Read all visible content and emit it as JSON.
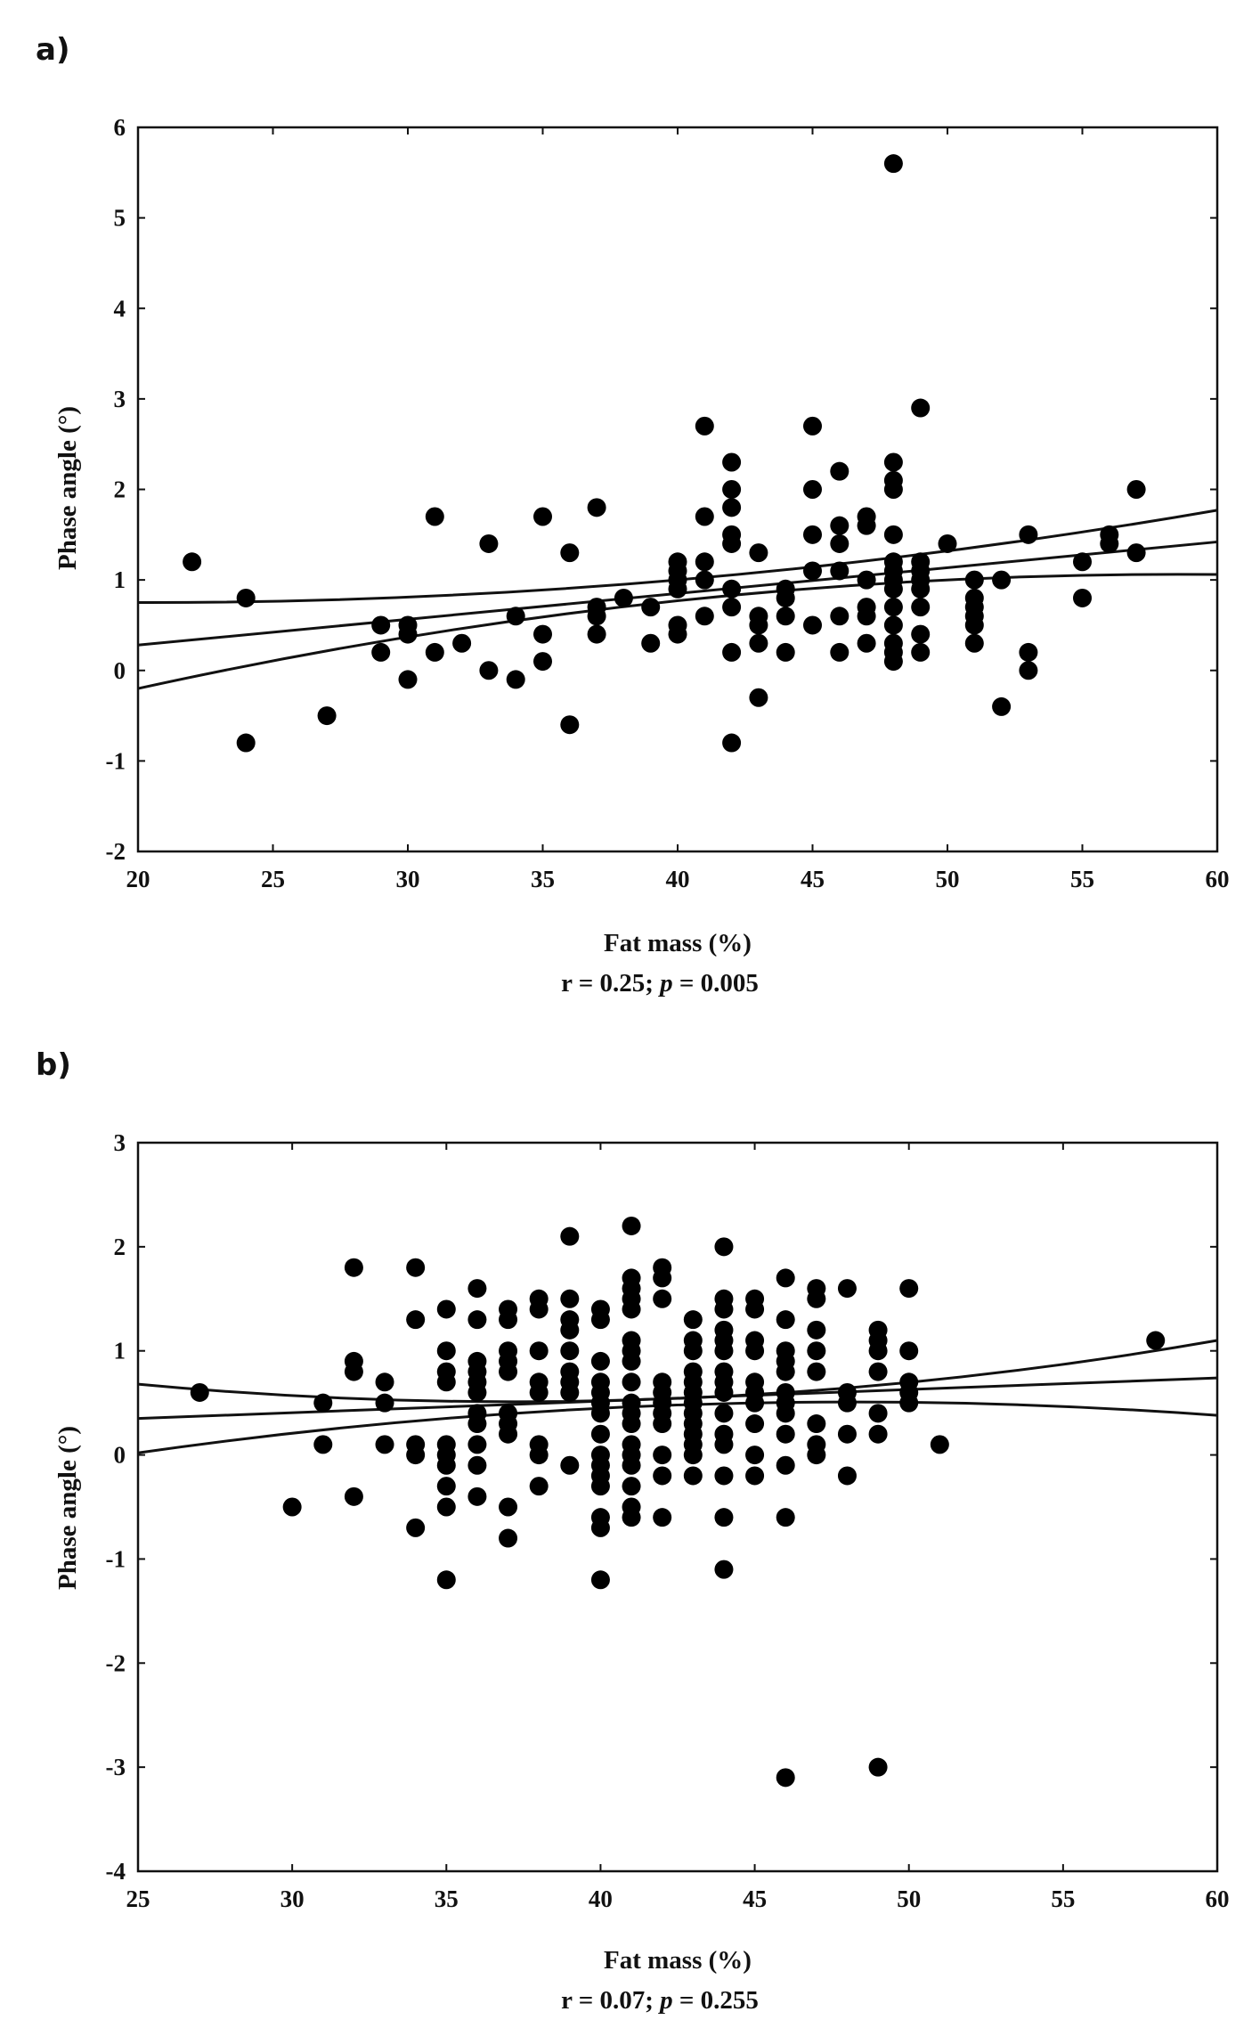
{
  "chart_data": [
    {
      "panel_label": "a)",
      "type": "scatter",
      "xlabel": "Fat mass (%)",
      "ylabel": "Phase angle (°)",
      "stat_text": "r = 0.25; p = 0.005",
      "stat_r": "r = 0.25; ",
      "stat_p_symbol": "p",
      "stat_p_value": " = 0.005",
      "xlim": [
        20,
        60
      ],
      "ylim": [
        -2,
        6
      ],
      "xticks": [
        20,
        25,
        30,
        35,
        40,
        45,
        50,
        55,
        60
      ],
      "yticks": [
        -2,
        -1,
        0,
        1,
        2,
        3,
        4,
        5,
        6
      ],
      "points": [
        [
          22,
          1.2
        ],
        [
          24,
          0.8
        ],
        [
          24,
          -0.8
        ],
        [
          27,
          -0.5
        ],
        [
          29,
          0.5
        ],
        [
          29,
          0.2
        ],
        [
          30,
          0.5
        ],
        [
          30,
          0.4
        ],
        [
          30,
          -0.1
        ],
        [
          31,
          1.7
        ],
        [
          31,
          0.2
        ],
        [
          32,
          0.3
        ],
        [
          33,
          1.4
        ],
        [
          33,
          0.0
        ],
        [
          34,
          0.6
        ],
        [
          34,
          -0.1
        ],
        [
          35,
          1.7
        ],
        [
          35,
          0.4
        ],
        [
          35,
          0.1
        ],
        [
          36,
          1.3
        ],
        [
          36,
          -0.6
        ],
        [
          37,
          1.8
        ],
        [
          37,
          0.7
        ],
        [
          37,
          0.6
        ],
        [
          37,
          0.4
        ],
        [
          38,
          0.8
        ],
        [
          39,
          0.7
        ],
        [
          39,
          0.3
        ],
        [
          40,
          1.2
        ],
        [
          40,
          1.1
        ],
        [
          40,
          1.0
        ],
        [
          40,
          0.9
        ],
        [
          40,
          0.5
        ],
        [
          40,
          0.4
        ],
        [
          41,
          2.7
        ],
        [
          41,
          1.7
        ],
        [
          41,
          1.2
        ],
        [
          41,
          1.0
        ],
        [
          41,
          0.6
        ],
        [
          42,
          2.3
        ],
        [
          42,
          2.0
        ],
        [
          42,
          1.8
        ],
        [
          42,
          1.5
        ],
        [
          42,
          1.4
        ],
        [
          42,
          0.9
        ],
        [
          42,
          0.7
        ],
        [
          42,
          0.2
        ],
        [
          42,
          -0.8
        ],
        [
          43,
          1.3
        ],
        [
          43,
          0.6
        ],
        [
          43,
          0.5
        ],
        [
          43,
          0.3
        ],
        [
          43,
          -0.3
        ],
        [
          44,
          0.9
        ],
        [
          44,
          0.8
        ],
        [
          44,
          0.6
        ],
        [
          44,
          0.2
        ],
        [
          45,
          2.7
        ],
        [
          45,
          2.0
        ],
        [
          45,
          1.5
        ],
        [
          45,
          1.1
        ],
        [
          45,
          0.5
        ],
        [
          46,
          2.2
        ],
        [
          46,
          1.6
        ],
        [
          46,
          1.4
        ],
        [
          46,
          1.1
        ],
        [
          46,
          0.6
        ],
        [
          46,
          0.2
        ],
        [
          47,
          1.7
        ],
        [
          47,
          1.6
        ],
        [
          47,
          1.0
        ],
        [
          47,
          0.7
        ],
        [
          47,
          0.6
        ],
        [
          47,
          0.3
        ],
        [
          48,
          5.6
        ],
        [
          48,
          2.3
        ],
        [
          48,
          2.1
        ],
        [
          48,
          2.0
        ],
        [
          48,
          1.5
        ],
        [
          48,
          1.2
        ],
        [
          48,
          1.1
        ],
        [
          48,
          1.0
        ],
        [
          48,
          0.9
        ],
        [
          48,
          0.7
        ],
        [
          48,
          0.5
        ],
        [
          48,
          0.3
        ],
        [
          48,
          0.2
        ],
        [
          48,
          0.1
        ],
        [
          49,
          2.9
        ],
        [
          49,
          1.2
        ],
        [
          49,
          1.1
        ],
        [
          49,
          1.0
        ],
        [
          49,
          0.9
        ],
        [
          49,
          0.7
        ],
        [
          49,
          0.4
        ],
        [
          49,
          0.2
        ],
        [
          50,
          1.4
        ],
        [
          51,
          1.0
        ],
        [
          51,
          0.8
        ],
        [
          51,
          0.7
        ],
        [
          51,
          0.6
        ],
        [
          51,
          0.5
        ],
        [
          51,
          0.3
        ],
        [
          52,
          1.0
        ],
        [
          52,
          -0.4
        ],
        [
          53,
          1.5
        ],
        [
          53,
          0.2
        ],
        [
          53,
          0.0
        ],
        [
          55,
          1.2
        ],
        [
          55,
          0.8
        ],
        [
          56,
          1.5
        ],
        [
          56,
          1.4
        ],
        [
          57,
          2.0
        ],
        [
          57,
          1.3
        ]
      ],
      "regression": {
        "x": [
          20,
          60
        ],
        "y": [
          0.28,
          1.42
        ]
      },
      "ci_upper": {
        "x": [
          20,
          40,
          60
        ],
        "y": [
          0.75,
          1.0,
          1.77
        ]
      },
      "ci_lower": {
        "x": [
          20,
          40,
          60
        ],
        "y": [
          -0.2,
          0.77,
          1.06
        ]
      }
    },
    {
      "panel_label": "b)",
      "type": "scatter",
      "xlabel": "Fat mass (%)",
      "ylabel": "Phase angle (°)",
      "stat_text": "r = 0.07; p = 0.255",
      "stat_r": "r = 0.07; ",
      "stat_p_symbol": "p",
      "stat_p_value": " = 0.255",
      "xlim": [
        25,
        60
      ],
      "ylim": [
        -4,
        3
      ],
      "xticks": [
        25,
        30,
        35,
        40,
        45,
        50,
        55,
        60
      ],
      "yticks": [
        -4,
        -3,
        -2,
        -1,
        0,
        1,
        2,
        3
      ],
      "points": [
        [
          27,
          0.6
        ],
        [
          30,
          -0.5
        ],
        [
          31,
          0.5
        ],
        [
          31,
          0.1
        ],
        [
          32,
          1.8
        ],
        [
          32,
          0.9
        ],
        [
          32,
          0.8
        ],
        [
          32,
          -0.4
        ],
        [
          33,
          0.7
        ],
        [
          33,
          0.5
        ],
        [
          33,
          0.1
        ],
        [
          34,
          1.8
        ],
        [
          34,
          1.3
        ],
        [
          34,
          0.1
        ],
        [
          34,
          0.0
        ],
        [
          34,
          -0.7
        ],
        [
          35,
          1.4
        ],
        [
          35,
          1.0
        ],
        [
          35,
          0.8
        ],
        [
          35,
          0.7
        ],
        [
          35,
          0.1
        ],
        [
          35,
          0.0
        ],
        [
          35,
          -0.1
        ],
        [
          35,
          -0.3
        ],
        [
          35,
          -0.5
        ],
        [
          35,
          -1.2
        ],
        [
          36,
          1.6
        ],
        [
          36,
          1.3
        ],
        [
          36,
          0.9
        ],
        [
          36,
          0.8
        ],
        [
          36,
          0.7
        ],
        [
          36,
          0.6
        ],
        [
          36,
          0.4
        ],
        [
          36,
          0.3
        ],
        [
          36,
          0.1
        ],
        [
          36,
          -0.1
        ],
        [
          36,
          -0.4
        ],
        [
          37,
          1.4
        ],
        [
          37,
          1.3
        ],
        [
          37,
          1.0
        ],
        [
          37,
          0.9
        ],
        [
          37,
          0.8
        ],
        [
          37,
          0.4
        ],
        [
          37,
          0.3
        ],
        [
          37,
          0.2
        ],
        [
          37,
          -0.5
        ],
        [
          37,
          -0.8
        ],
        [
          38,
          1.5
        ],
        [
          38,
          1.4
        ],
        [
          38,
          1.0
        ],
        [
          38,
          0.7
        ],
        [
          38,
          0.6
        ],
        [
          38,
          0.1
        ],
        [
          38,
          0.0
        ],
        [
          38,
          -0.3
        ],
        [
          39,
          2.1
        ],
        [
          39,
          1.5
        ],
        [
          39,
          1.3
        ],
        [
          39,
          1.2
        ],
        [
          39,
          1.0
        ],
        [
          39,
          0.8
        ],
        [
          39,
          0.7
        ],
        [
          39,
          0.6
        ],
        [
          39,
          -0.1
        ],
        [
          40,
          1.4
        ],
        [
          40,
          1.3
        ],
        [
          40,
          0.9
        ],
        [
          40,
          0.7
        ],
        [
          40,
          0.6
        ],
        [
          40,
          0.5
        ],
        [
          40,
          0.4
        ],
        [
          40,
          0.2
        ],
        [
          40,
          0.0
        ],
        [
          40,
          -0.1
        ],
        [
          40,
          -0.2
        ],
        [
          40,
          -0.3
        ],
        [
          40,
          -0.6
        ],
        [
          40,
          -0.7
        ],
        [
          40,
          -1.2
        ],
        [
          41,
          2.2
        ],
        [
          41,
          1.7
        ],
        [
          41,
          1.6
        ],
        [
          41,
          1.5
        ],
        [
          41,
          1.4
        ],
        [
          41,
          1.1
        ],
        [
          41,
          1.0
        ],
        [
          41,
          0.9
        ],
        [
          41,
          0.7
        ],
        [
          41,
          0.5
        ],
        [
          41,
          0.4
        ],
        [
          41,
          0.3
        ],
        [
          41,
          0.1
        ],
        [
          41,
          0.0
        ],
        [
          41,
          -0.1
        ],
        [
          41,
          -0.3
        ],
        [
          41,
          -0.5
        ],
        [
          41,
          -0.6
        ],
        [
          42,
          1.8
        ],
        [
          42,
          1.7
        ],
        [
          42,
          1.5
        ],
        [
          42,
          0.7
        ],
        [
          42,
          0.6
        ],
        [
          42,
          0.5
        ],
        [
          42,
          0.4
        ],
        [
          42,
          0.3
        ],
        [
          42,
          0.0
        ],
        [
          42,
          -0.2
        ],
        [
          42,
          -0.6
        ],
        [
          43,
          1.3
        ],
        [
          43,
          1.1
        ],
        [
          43,
          1.0
        ],
        [
          43,
          0.8
        ],
        [
          43,
          0.7
        ],
        [
          43,
          0.6
        ],
        [
          43,
          0.5
        ],
        [
          43,
          0.4
        ],
        [
          43,
          0.3
        ],
        [
          43,
          0.2
        ],
        [
          43,
          0.1
        ],
        [
          43,
          0.0
        ],
        [
          43,
          -0.2
        ],
        [
          44,
          2.0
        ],
        [
          44,
          1.5
        ],
        [
          44,
          1.4
        ],
        [
          44,
          1.2
        ],
        [
          44,
          1.1
        ],
        [
          44,
          1.0
        ],
        [
          44,
          0.8
        ],
        [
          44,
          0.7
        ],
        [
          44,
          0.6
        ],
        [
          44,
          0.4
        ],
        [
          44,
          0.2
        ],
        [
          44,
          0.1
        ],
        [
          44,
          -0.2
        ],
        [
          44,
          -0.6
        ],
        [
          44,
          -1.1
        ],
        [
          45,
          1.5
        ],
        [
          45,
          1.4
        ],
        [
          45,
          1.1
        ],
        [
          45,
          1.0
        ],
        [
          45,
          0.7
        ],
        [
          45,
          0.6
        ],
        [
          45,
          0.5
        ],
        [
          45,
          0.3
        ],
        [
          45,
          0.0
        ],
        [
          45,
          -0.2
        ],
        [
          46,
          1.7
        ],
        [
          46,
          1.3
        ],
        [
          46,
          1.0
        ],
        [
          46,
          0.9
        ],
        [
          46,
          0.8
        ],
        [
          46,
          0.6
        ],
        [
          46,
          0.5
        ],
        [
          46,
          0.4
        ],
        [
          46,
          0.2
        ],
        [
          46,
          -0.1
        ],
        [
          46,
          -0.6
        ],
        [
          46,
          -3.1
        ],
        [
          47,
          1.6
        ],
        [
          47,
          1.5
        ],
        [
          47,
          1.2
        ],
        [
          47,
          1.0
        ],
        [
          47,
          0.8
        ],
        [
          47,
          0.3
        ],
        [
          47,
          0.1
        ],
        [
          47,
          0.0
        ],
        [
          48,
          1.6
        ],
        [
          48,
          0.6
        ],
        [
          48,
          0.5
        ],
        [
          48,
          0.2
        ],
        [
          48,
          -0.2
        ],
        [
          49,
          1.2
        ],
        [
          49,
          1.1
        ],
        [
          49,
          1.0
        ],
        [
          49,
          0.8
        ],
        [
          49,
          0.4
        ],
        [
          49,
          0.2
        ],
        [
          49,
          -3.0
        ],
        [
          50,
          1.6
        ],
        [
          50,
          1.0
        ],
        [
          50,
          0.7
        ],
        [
          50,
          0.6
        ],
        [
          50,
          0.5
        ],
        [
          51,
          0.1
        ],
        [
          58,
          1.1
        ]
      ],
      "regression": {
        "x": [
          25,
          60
        ],
        "y": [
          0.35,
          0.74
        ]
      },
      "ci_upper": {
        "x": [
          25,
          45,
          60
        ],
        "y": [
          0.68,
          0.58,
          1.1
        ]
      },
      "ci_lower": {
        "x": [
          25,
          45,
          60
        ],
        "y": [
          0.02,
          0.5,
          0.38
        ]
      }
    }
  ]
}
